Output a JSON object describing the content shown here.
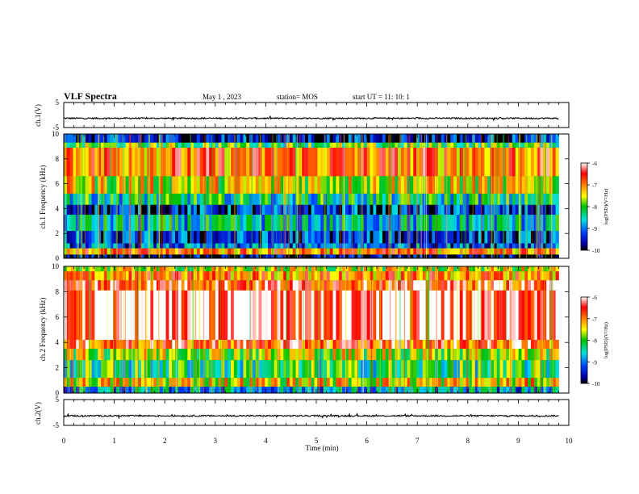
{
  "header": {
    "title": "VLF Spectra",
    "date": "May 1 , 2023",
    "station": "station= MOS",
    "start": "start UT =  11: 10: 1"
  },
  "chart_data": [
    {
      "type": "line",
      "panel": "waveform-ch1",
      "ylabel": "ch.1(V)",
      "ylim": [
        -5,
        5
      ],
      "yticks": [
        "5",
        "-5"
      ],
      "xlim": [
        0,
        10
      ],
      "baseline": -1.3
    },
    {
      "type": "heatmap",
      "panel": "spectrogram-ch1",
      "ylabel": "ch.1 Frequency (kHz)",
      "ylim": [
        0,
        10
      ],
      "yticks": [
        "0",
        "2",
        "4",
        "6",
        "8",
        "10"
      ],
      "xlim": [
        0,
        9.8
      ],
      "colorbar": {
        "label": "log(PSD)(V²/Hz)",
        "range": [
          -10,
          -6
        ],
        "ticks": [
          "-6",
          "-7",
          "-8",
          "-9",
          "-10"
        ]
      },
      "bands": [
        {
          "from": 9.3,
          "to": 10,
          "level": -9.5
        },
        {
          "from": 8.9,
          "to": 9.3,
          "level": -8.0
        },
        {
          "from": 6.6,
          "to": 8.9,
          "level": -6.9
        },
        {
          "from": 5.2,
          "to": 6.6,
          "level": -7.5
        },
        {
          "from": 4.3,
          "to": 5.2,
          "level": -8.4
        },
        {
          "from": 3.5,
          "to": 4.3,
          "level": -9.4
        },
        {
          "from": 2.2,
          "to": 3.5,
          "level": -8.6
        },
        {
          "from": 1.2,
          "to": 2.2,
          "level": -9.4
        },
        {
          "from": 0.8,
          "to": 1.2,
          "level": -9.1
        },
        {
          "from": 0.3,
          "to": 0.8,
          "level": -7.0
        },
        {
          "from": 0.0,
          "to": 0.3,
          "level": -9.8
        }
      ]
    },
    {
      "type": "heatmap",
      "panel": "spectrogram-ch2",
      "ylabel": "ch.2 Frequency (kHz)",
      "ylim": [
        0,
        10
      ],
      "yticks": [
        "0",
        "2",
        "4",
        "6",
        "8",
        "10"
      ],
      "xlim": [
        0,
        9.8
      ],
      "colorbar": {
        "label": "log(PSD)(V²/Hz)",
        "range": [
          -10,
          -6
        ],
        "ticks": [
          "-6",
          "-7",
          "-8",
          "-9",
          "-10"
        ]
      },
      "bands": [
        {
          "from": 9.6,
          "to": 10,
          "level": -7.6
        },
        {
          "from": 8.9,
          "to": 9.6,
          "level": -7.0
        },
        {
          "from": 8.1,
          "to": 8.9,
          "level": -6.5
        },
        {
          "from": 4.2,
          "to": 8.1,
          "level": -6.1
        },
        {
          "from": 3.5,
          "to": 4.2,
          "level": -6.7
        },
        {
          "from": 2.6,
          "to": 3.5,
          "level": -7.6
        },
        {
          "from": 1.2,
          "to": 2.6,
          "level": -8.2
        },
        {
          "from": 0.5,
          "to": 1.2,
          "level": -7.4
        },
        {
          "from": 0.0,
          "to": 0.5,
          "level": -8.8
        }
      ]
    },
    {
      "type": "line",
      "panel": "waveform-ch2",
      "ylabel": "ch.2(V)",
      "ylim": [
        -5,
        5
      ],
      "yticks": [
        "5",
        "-5"
      ],
      "xlim": [
        0,
        10
      ],
      "baseline": -1.3,
      "xlabel": "Time (min)",
      "xticks": [
        "0",
        "1",
        "2",
        "3",
        "4",
        "5",
        "6",
        "7",
        "8",
        "9",
        "10"
      ]
    }
  ]
}
